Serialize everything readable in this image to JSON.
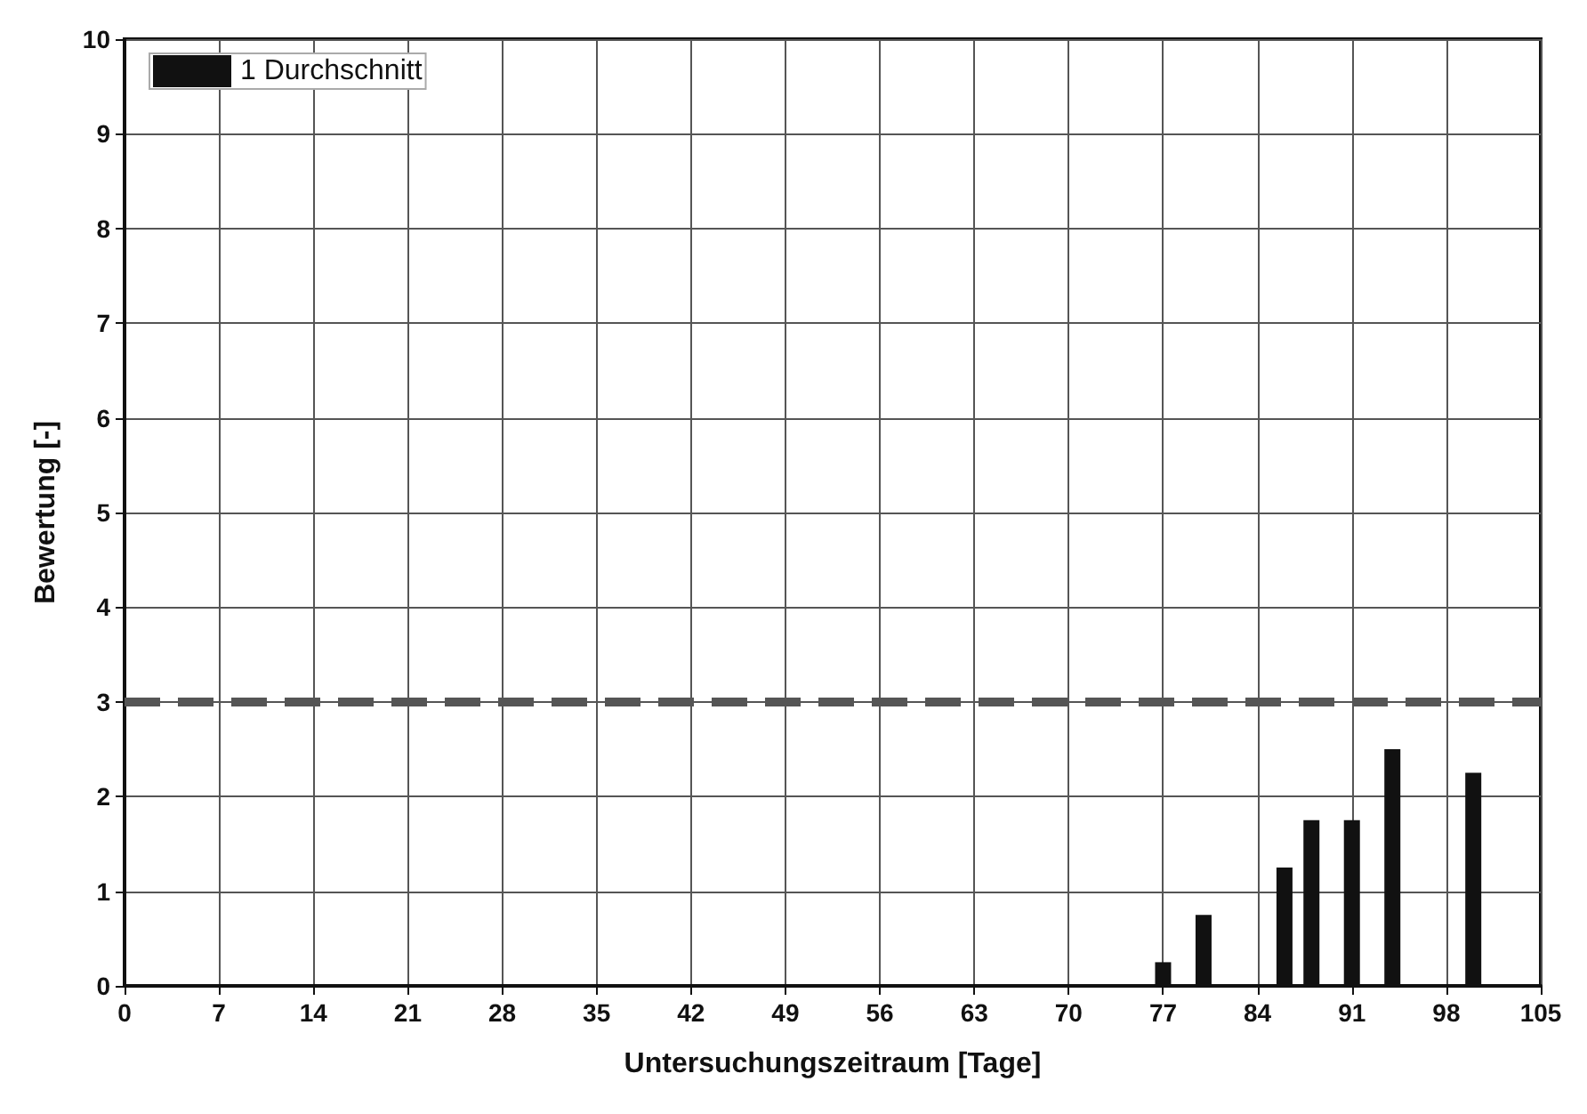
{
  "chart_data": {
    "type": "bar",
    "xlabel": "Untersuchungszeitraum [Tage]",
    "ylabel": "Bewertung [-]",
    "x": [
      77,
      80,
      86,
      88,
      91,
      94,
      100
    ],
    "series": [
      {
        "name": "1 Durchschnitt",
        "color": "#111111",
        "values": [
          0.25,
          0.75,
          1.25,
          1.75,
          1.75,
          2.5,
          2.25
        ]
      }
    ],
    "xlim": [
      0,
      105
    ],
    "xticks": [
      0,
      7,
      14,
      21,
      28,
      35,
      42,
      49,
      56,
      63,
      70,
      77,
      84,
      91,
      98,
      105
    ],
    "ylim": [
      0,
      10
    ],
    "yticks": [
      0,
      1,
      2,
      3,
      4,
      5,
      6,
      7,
      8,
      9,
      10
    ],
    "ref_lines": [
      {
        "axis": "y",
        "value": 3,
        "color": "#555555",
        "line_style": "dashed"
      }
    ],
    "grid": true,
    "legend": "top left"
  }
}
